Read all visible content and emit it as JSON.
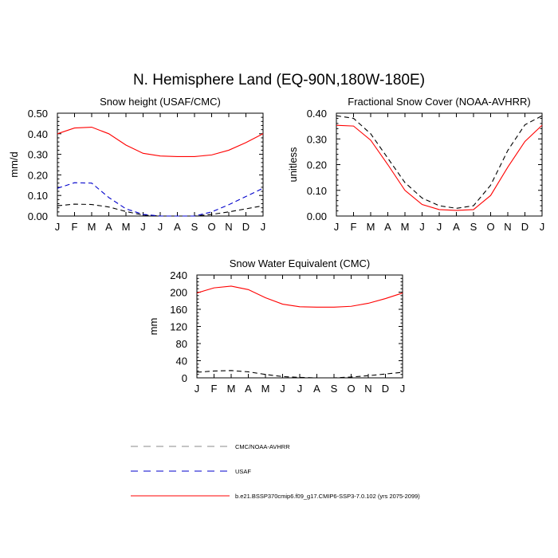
{
  "page": {
    "title": "N. Hemisphere Land (EQ-90N,180W-180E)"
  },
  "colors": {
    "model": "#ff0000",
    "usaf": "#0000cc",
    "obs": "#000000",
    "legend_obs": "#888888",
    "legend_usaf": "#0000cc",
    "legend_model": "#ff0000"
  },
  "legend": {
    "items": [
      {
        "label": "CMC/NOAA-AVHRR",
        "style": "dashed",
        "color": "#888888"
      },
      {
        "label": "USAF",
        "style": "dashed",
        "color": "#0000cc"
      },
      {
        "label": "b.e21.BSSP370cmip6.f09_g17.CMIP6-SSP3-7.0.102 (yrs 2075-2099)",
        "style": "solid",
        "color": "#ff0000"
      }
    ]
  },
  "chart_data": [
    {
      "type": "line",
      "title": "Snow height (USAF/CMC)",
      "xlabel": "",
      "ylabel": "mm/d",
      "categories": [
        "J",
        "F",
        "M",
        "A",
        "M",
        "J",
        "J",
        "A",
        "S",
        "O",
        "N",
        "D",
        "J"
      ],
      "ylim": [
        0,
        0.5
      ],
      "yticks": [
        "0.00",
        "0.10",
        "0.20",
        "0.30",
        "0.40",
        "0.50"
      ],
      "series": [
        {
          "key": "model",
          "style": "solid",
          "values": [
            0.4,
            0.428,
            0.432,
            0.4,
            0.345,
            0.305,
            0.292,
            0.289,
            0.289,
            0.297,
            0.32,
            0.357,
            0.4
          ]
        },
        {
          "key": "usaf",
          "style": "dashed",
          "values": [
            0.135,
            0.162,
            0.16,
            0.09,
            0.035,
            0.008,
            0.0,
            0.0,
            0.0,
            0.02,
            0.055,
            0.095,
            0.135
          ]
        },
        {
          "key": "obs",
          "style": "dashed",
          "values": [
            0.05,
            0.058,
            0.056,
            0.044,
            0.022,
            0.005,
            0.0,
            0.0,
            0.0,
            0.008,
            0.02,
            0.035,
            0.05
          ]
        }
      ]
    },
    {
      "type": "line",
      "title": "Fractional Snow Cover (NOAA-AVHRR)",
      "xlabel": "",
      "ylabel": "unitless",
      "categories": [
        "J",
        "F",
        "M",
        "A",
        "M",
        "J",
        "J",
        "A",
        "S",
        "O",
        "N",
        "D",
        "J"
      ],
      "ylim": [
        0,
        0.4
      ],
      "yticks": [
        "0.00",
        "0.10",
        "0.20",
        "0.30",
        "0.40"
      ],
      "series": [
        {
          "key": "model",
          "style": "solid",
          "values": [
            0.353,
            0.35,
            0.295,
            0.2,
            0.1,
            0.045,
            0.025,
            0.022,
            0.025,
            0.08,
            0.19,
            0.29,
            0.353
          ]
        },
        {
          "key": "obs",
          "style": "dashed",
          "values": [
            0.39,
            0.38,
            0.32,
            0.225,
            0.13,
            0.07,
            0.04,
            0.03,
            0.04,
            0.12,
            0.255,
            0.355,
            0.39
          ]
        }
      ]
    },
    {
      "type": "line",
      "title": "Snow Water Equivalent (CMC)",
      "xlabel": "",
      "ylabel": "mm",
      "categories": [
        "J",
        "F",
        "M",
        "A",
        "M",
        "J",
        "J",
        "A",
        "S",
        "O",
        "N",
        "D",
        "J"
      ],
      "ylim": [
        0,
        240
      ],
      "yticks": [
        "0",
        "40",
        "80",
        "120",
        "160",
        "200",
        "240"
      ],
      "series": [
        {
          "key": "model",
          "style": "solid",
          "values": [
            198,
            210,
            214,
            206,
            187,
            172,
            166,
            165,
            165,
            167,
            174,
            185,
            198
          ]
        },
        {
          "key": "obs",
          "style": "dashed",
          "values": [
            13,
            16,
            17,
            14,
            8,
            3,
            1,
            0,
            0,
            2,
            5,
            9,
            13
          ]
        }
      ]
    }
  ]
}
